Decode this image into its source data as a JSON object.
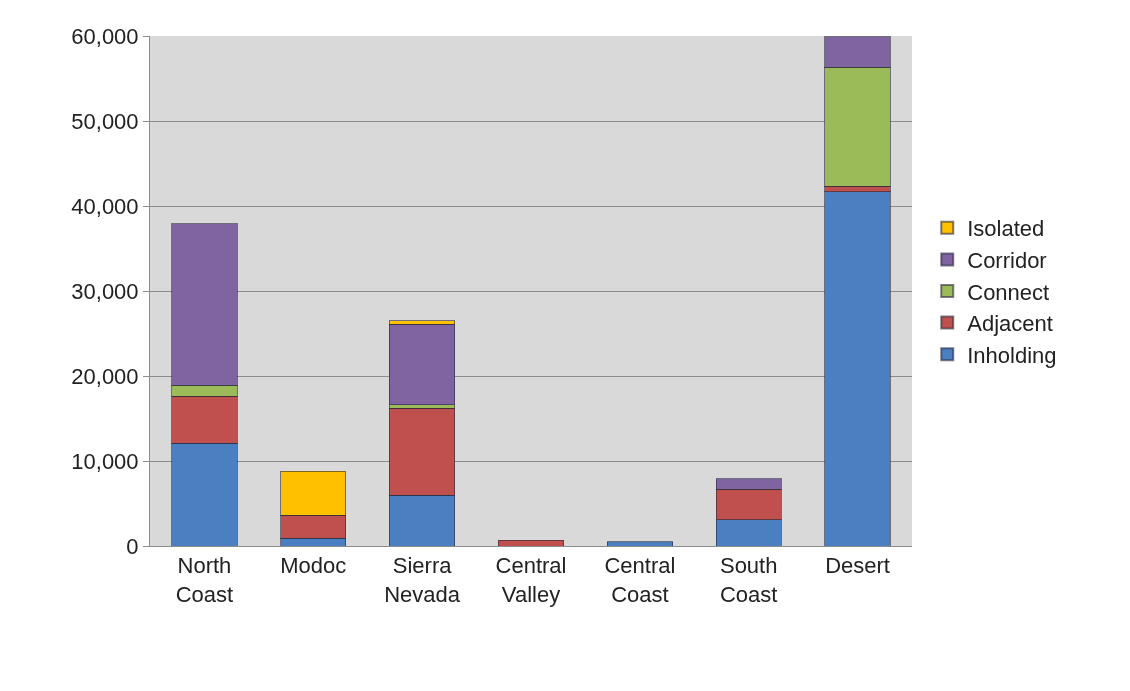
{
  "chart_data": {
    "type": "bar",
    "stacked": true,
    "categories": [
      "North Coast",
      "Modoc",
      "Sierra Nevada",
      "Central Valley",
      "Central Coast",
      "South Coast",
      "Desert"
    ],
    "series": [
      {
        "name": "Inholding",
        "color": "#4a7fc1",
        "values": [
          12100,
          900,
          6000,
          null,
          500,
          3100,
          41700
        ]
      },
      {
        "name": "Adjacent",
        "color": "#c0504d",
        "values": [
          5500,
          2700,
          10200,
          700,
          null,
          3600,
          600
        ]
      },
      {
        "name": "Connect",
        "color": "#9bbb59",
        "values": [
          1300,
          null,
          400,
          null,
          null,
          null,
          14000
        ]
      },
      {
        "name": "Corridor",
        "color": "#8064a2",
        "values": [
          19000,
          null,
          9500,
          null,
          null,
          1200,
          3600
        ]
      },
      {
        "name": "Isolated",
        "color": "#ffc000",
        "values": [
          null,
          5200,
          400,
          null,
          null,
          null,
          null
        ]
      }
    ],
    "ylim": [
      0,
      60000
    ],
    "yticks": [
      {
        "value": 0,
        "label": "0"
      },
      {
        "value": 10000,
        "label": "10,000"
      },
      {
        "value": 20000,
        "label": "20,000"
      },
      {
        "value": 30000,
        "label": "30,000"
      },
      {
        "value": 40000,
        "label": "40,000"
      },
      {
        "value": 50000,
        "label": "50,000"
      },
      {
        "value": 60000,
        "label": "60,000"
      }
    ],
    "grid": "y",
    "legend": "right"
  }
}
